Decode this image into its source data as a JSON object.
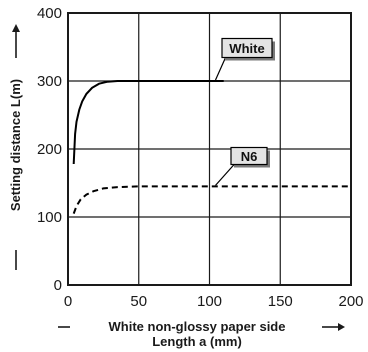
{
  "chart_data": {
    "type": "line",
    "xlim": [
      0,
      200
    ],
    "ylim": [
      0,
      400
    ],
    "x_ticks": [
      0,
      50,
      100,
      150,
      200
    ],
    "y_ticks": [
      0,
      100,
      200,
      300,
      400
    ],
    "x_tick_labels": [
      "0",
      "50",
      "100",
      "150",
      "200"
    ],
    "y_tick_labels": [
      "0",
      "100",
      "200",
      "300",
      "400"
    ],
    "xlabel_line1": "White non-glossy paper side",
    "xlabel_line2": "Length a (mm)",
    "ylabel": "Setting distance L(m)",
    "grid": true,
    "series": [
      {
        "name": "White",
        "style": "solid",
        "x": [
          4,
          5,
          6,
          8,
          10,
          13,
          17,
          22,
          28,
          35,
          40,
          50,
          75,
          100,
          110
        ],
        "y": [
          178,
          222,
          240,
          258,
          270,
          281,
          290,
          296,
          299,
          300,
          300,
          300,
          300,
          300,
          300
        ]
      },
      {
        "name": "N6",
        "style": "dashed",
        "x": [
          4,
          6,
          9,
          13,
          18,
          25,
          35,
          50,
          100,
          150,
          200
        ],
        "y": [
          105,
          116,
          126,
          133,
          138,
          142,
          144,
          145,
          145,
          145,
          145
        ]
      }
    ]
  }
}
